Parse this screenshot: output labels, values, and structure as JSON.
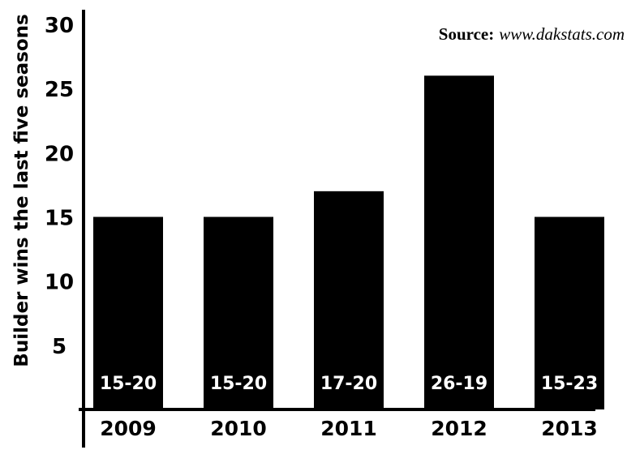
{
  "chart_data": {
    "type": "bar",
    "title": "",
    "ylabel": "Builder wins the last five seasons",
    "xlabel": "",
    "ylim": [
      0,
      30
    ],
    "yticks": [
      5,
      10,
      15,
      20,
      25,
      30
    ],
    "categories": [
      "2009",
      "2010",
      "2011",
      "2012",
      "2013"
    ],
    "values": [
      15,
      15,
      17,
      26,
      15
    ],
    "data_labels": [
      "15-20",
      "15-20",
      "17-20",
      "26-19",
      "15-23"
    ],
    "bar_color": "#000000",
    "bar_label_color": "#ffffff",
    "grid": false,
    "legend": "none"
  },
  "source": {
    "label": "Source:",
    "url": "www.dakstats.com"
  }
}
